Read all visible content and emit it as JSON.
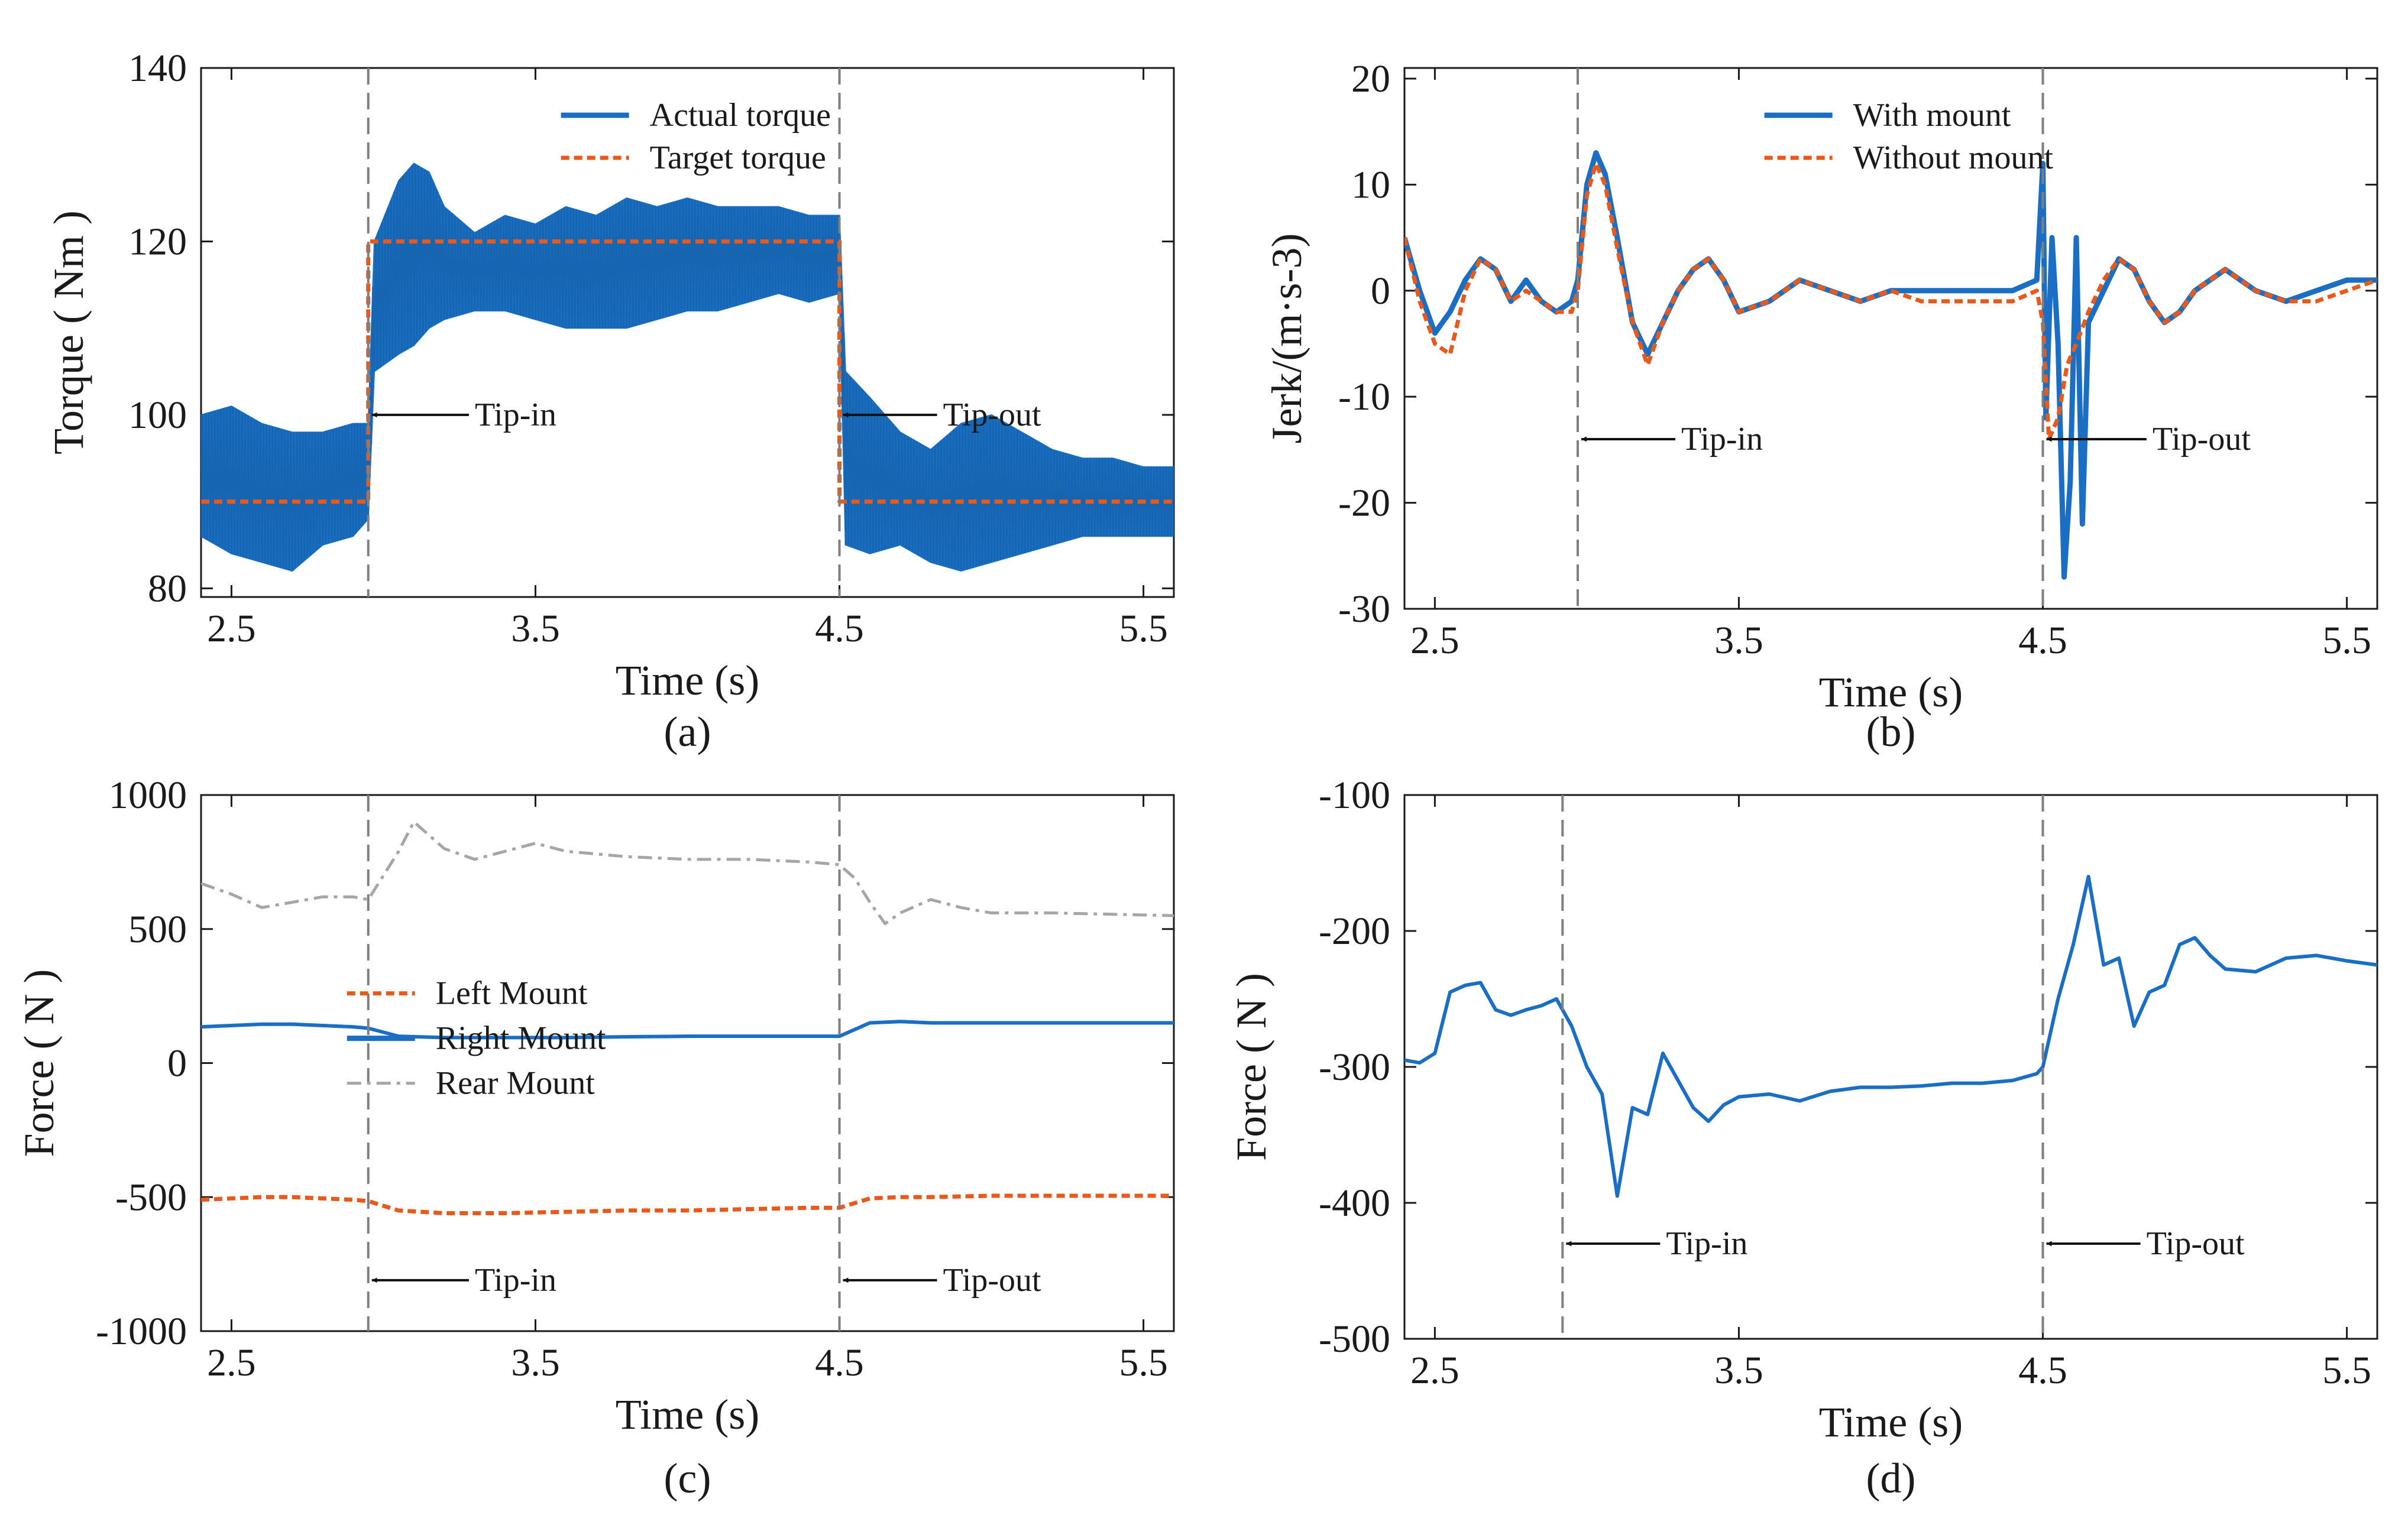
{
  "colors": {
    "blue": "#1a6fc4",
    "orange": "#e8591c",
    "gray": "#a6a6a6",
    "axis": "#1a1a1a",
    "marker": "#7f7f7f"
  },
  "chart_data": [
    {
      "id": "a",
      "type": "line",
      "caption": "(a)",
      "xlabel": "Time (s)",
      "ylabel": "Torque ( Nm )",
      "xlim": [
        2.4,
        5.6
      ],
      "ylim": [
        79,
        140
      ],
      "xticks": [
        2.5,
        3.5,
        4.5,
        5.5
      ],
      "xtick_labels": [
        "2.5",
        "3.5",
        "4.5",
        "5.5"
      ],
      "yticks": [
        80,
        100,
        120,
        140
      ],
      "ytick_labels": [
        "80",
        "100",
        "120",
        "140"
      ],
      "vlines": [
        2.95,
        4.5
      ],
      "annotations": [
        {
          "text": "Tip-in",
          "x_tip": 2.95,
          "x_text": 3.32,
          "y": 100
        },
        {
          "text": "Tip-out",
          "x_tip": 4.5,
          "x_text": 4.86,
          "y": 100
        }
      ],
      "legend": {
        "position": "top-center",
        "entries": [
          "Actual torque",
          "Target torque"
        ]
      },
      "series": [
        {
          "name": "Actual torque",
          "style": "band",
          "x": [
            2.4,
            2.5,
            2.6,
            2.7,
            2.8,
            2.9,
            2.95,
            2.97,
            3.05,
            3.1,
            3.15,
            3.2,
            3.3,
            3.4,
            3.5,
            3.6,
            3.7,
            3.8,
            3.9,
            4.0,
            4.1,
            4.2,
            4.3,
            4.4,
            4.5,
            4.52,
            4.6,
            4.7,
            4.8,
            4.9,
            5.0,
            5.1,
            5.2,
            5.3,
            5.4,
            5.5,
            5.6
          ],
          "upper": [
            100,
            101,
            99,
            98,
            98,
            99,
            99,
            120,
            127,
            129,
            128,
            124,
            121,
            123,
            122,
            124,
            123,
            125,
            124,
            125,
            124,
            124,
            124,
            123,
            123,
            105,
            102,
            98,
            96,
            99,
            100,
            98,
            96,
            95,
            95,
            94,
            94
          ],
          "lower": [
            86,
            84,
            83,
            82,
            85,
            86,
            88,
            105,
            107,
            108,
            110,
            111,
            112,
            112,
            111,
            110,
            110,
            110,
            111,
            112,
            112,
            113,
            114,
            113,
            114,
            85,
            84,
            85,
            83,
            82,
            83,
            84,
            85,
            86,
            86,
            86,
            86
          ]
        },
        {
          "name": "Target torque",
          "style": "dotted",
          "x": [
            2.4,
            2.95,
            2.95,
            4.5,
            4.5,
            5.6
          ],
          "y": [
            90,
            90,
            120,
            120,
            90,
            90
          ]
        }
      ]
    },
    {
      "id": "b",
      "type": "line",
      "caption": "(b)",
      "xlabel": "Time (s)",
      "ylabel": "Jerk/(m·s-3)",
      "xlim": [
        2.4,
        5.6
      ],
      "ylim": [
        -30,
        21
      ],
      "xticks": [
        2.5,
        3.5,
        4.5,
        5.5
      ],
      "xtick_labels": [
        "2.5",
        "3.5",
        "4.5",
        "5.5"
      ],
      "yticks": [
        -30,
        -20,
        -10,
        0,
        10,
        20
      ],
      "ytick_labels": [
        "-30",
        "-20",
        "-10",
        "0",
        "10",
        "20"
      ],
      "vlines": [
        2.97,
        4.5
      ],
      "annotations": [
        {
          "text": "Tip-in",
          "x_tip": 2.97,
          "x_text": 3.33,
          "y": -14
        },
        {
          "text": "Tip-out",
          "x_tip": 4.5,
          "x_text": 4.88,
          "y": -14
        }
      ],
      "legend": {
        "position": "top-center",
        "entries": [
          "With mount",
          "Without mount"
        ]
      },
      "series": [
        {
          "name": "With mount",
          "style": "solid",
          "x": [
            2.4,
            2.45,
            2.5,
            2.55,
            2.6,
            2.65,
            2.7,
            2.75,
            2.8,
            2.85,
            2.9,
            2.95,
            2.97,
            3.0,
            3.03,
            3.06,
            3.1,
            3.15,
            3.2,
            3.25,
            3.3,
            3.35,
            3.4,
            3.45,
            3.5,
            3.6,
            3.7,
            3.8,
            3.9,
            4.0,
            4.1,
            4.2,
            4.3,
            4.4,
            4.48,
            4.5,
            4.51,
            4.53,
            4.55,
            4.57,
            4.59,
            4.61,
            4.63,
            4.65,
            4.7,
            4.75,
            4.8,
            4.85,
            4.9,
            4.95,
            5.0,
            5.05,
            5.1,
            5.15,
            5.2,
            5.3,
            5.4,
            5.5,
            5.6
          ],
          "y": [
            5,
            0,
            -4,
            -2,
            1,
            3,
            2,
            -1,
            1,
            -1,
            -2,
            -1,
            1,
            10,
            13,
            11,
            5,
            -3,
            -6,
            -3,
            0,
            2,
            3,
            1,
            -2,
            -1,
            1,
            0,
            -1,
            0,
            0,
            0,
            0,
            0,
            1,
            12,
            -12,
            5,
            -5,
            -27,
            -18,
            5,
            -22,
            -3,
            0,
            3,
            2,
            -1,
            -3,
            -2,
            0,
            1,
            2,
            1,
            0,
            -1,
            0,
            1,
            1
          ]
        },
        {
          "name": "Without mount",
          "style": "dotted",
          "x": [
            2.4,
            2.45,
            2.5,
            2.55,
            2.6,
            2.65,
            2.7,
            2.75,
            2.8,
            2.85,
            2.9,
            2.95,
            2.97,
            3.0,
            3.03,
            3.06,
            3.1,
            3.15,
            3.2,
            3.25,
            3.3,
            3.35,
            3.4,
            3.45,
            3.5,
            3.6,
            3.7,
            3.8,
            3.9,
            4.0,
            4.1,
            4.2,
            4.3,
            4.4,
            4.48,
            4.5,
            4.52,
            4.55,
            4.58,
            4.61,
            4.65,
            4.7,
            4.75,
            4.8,
            4.85,
            4.9,
            4.95,
            5.0,
            5.05,
            5.1,
            5.2,
            5.3,
            5.4,
            5.5,
            5.6
          ],
          "y": [
            5,
            -1,
            -5,
            -6,
            0,
            3,
            2,
            -1,
            0,
            -1,
            -2,
            -2,
            0,
            9,
            12,
            10,
            4,
            -3,
            -7,
            -3,
            0,
            2,
            3,
            1,
            -2,
            -1,
            1,
            0,
            -1,
            0,
            -1,
            -1,
            -1,
            -1,
            0,
            -3,
            -14,
            -12,
            -7,
            -5,
            -2,
            1,
            3,
            2,
            -1,
            -3,
            -2,
            0,
            1,
            2,
            0,
            -1,
            -1,
            0,
            1
          ]
        }
      ]
    },
    {
      "id": "c",
      "type": "line",
      "caption": "(c)",
      "xlabel": "Time (s)",
      "ylabel": "Force ( N )",
      "xlim": [
        2.4,
        5.6
      ],
      "ylim": [
        -1000,
        1000
      ],
      "xticks": [
        2.5,
        3.5,
        4.5,
        5.5
      ],
      "xtick_labels": [
        "2.5",
        "3.5",
        "4.5",
        "5.5"
      ],
      "yticks": [
        -1000,
        -500,
        0,
        500,
        1000
      ],
      "ytick_labels": [
        "-1000",
        "-500",
        "0",
        "500",
        "1000"
      ],
      "vlines": [
        2.95,
        4.5
      ],
      "annotations": [
        {
          "text": "Tip-in",
          "x_tip": 2.95,
          "x_text": 3.32,
          "y": -810
        },
        {
          "text": "Tip-out",
          "x_tip": 4.5,
          "x_text": 4.86,
          "y": -810
        }
      ],
      "legend": {
        "position": "center-left",
        "entries": [
          "Left Mount",
          "Right Mount",
          "Rear Mount"
        ]
      },
      "series": [
        {
          "name": "Left Mount",
          "style": "dotted",
          "x": [
            2.4,
            2.5,
            2.6,
            2.7,
            2.8,
            2.9,
            2.95,
            3.05,
            3.2,
            3.4,
            3.6,
            3.8,
            4.0,
            4.2,
            4.4,
            4.5,
            4.6,
            4.7,
            4.8,
            5.0,
            5.2,
            5.4,
            5.6
          ],
          "y": [
            -510,
            -505,
            -500,
            -500,
            -505,
            -510,
            -515,
            -550,
            -560,
            -560,
            -555,
            -550,
            -550,
            -545,
            -540,
            -540,
            -505,
            -500,
            -500,
            -495,
            -495,
            -495,
            -495
          ]
        },
        {
          "name": "Right Mount",
          "style": "solid",
          "x": [
            2.4,
            2.5,
            2.6,
            2.7,
            2.8,
            2.9,
            2.95,
            3.05,
            3.2,
            3.4,
            3.6,
            3.8,
            4.0,
            4.2,
            4.4,
            4.5,
            4.6,
            4.7,
            4.8,
            5.0,
            5.2,
            5.4,
            5.6
          ],
          "y": [
            135,
            140,
            145,
            145,
            140,
            135,
            130,
            100,
            95,
            95,
            95,
            98,
            100,
            100,
            100,
            100,
            150,
            155,
            150,
            150,
            150,
            150,
            150
          ]
        },
        {
          "name": "Rear Mount",
          "style": "dashdot",
          "x": [
            2.4,
            2.5,
            2.6,
            2.7,
            2.8,
            2.9,
            2.95,
            3.05,
            3.1,
            3.2,
            3.3,
            3.4,
            3.5,
            3.6,
            3.8,
            4.0,
            4.2,
            4.4,
            4.5,
            4.55,
            4.6,
            4.65,
            4.7,
            4.8,
            4.9,
            5.0,
            5.2,
            5.4,
            5.6
          ],
          "y": [
            670,
            630,
            580,
            600,
            620,
            620,
            610,
            790,
            900,
            800,
            760,
            790,
            820,
            790,
            770,
            760,
            760,
            750,
            740,
            690,
            600,
            520,
            560,
            610,
            580,
            560,
            560,
            555,
            550
          ]
        }
      ]
    },
    {
      "id": "d",
      "type": "line",
      "caption": "(d)",
      "xlabel": "Time (s)",
      "ylabel": "Force ( N )",
      "xlim": [
        2.4,
        5.6
      ],
      "ylim": [
        -500,
        -100
      ],
      "xticks": [
        2.5,
        3.5,
        4.5,
        5.5
      ],
      "xtick_labels": [
        "2.5",
        "3.5",
        "4.5",
        "5.5"
      ],
      "yticks": [
        -500,
        -400,
        -300,
        -200,
        -100
      ],
      "ytick_labels": [
        "-500",
        "-400",
        "-300",
        "-200",
        "-100"
      ],
      "vlines": [
        2.92,
        4.5
      ],
      "annotations": [
        {
          "text": "Tip-in",
          "x_tip": 2.92,
          "x_text": 3.28,
          "y": -430
        },
        {
          "text": "Tip-out",
          "x_tip": 4.5,
          "x_text": 4.86,
          "y": -430
        }
      ],
      "legend": null,
      "series": [
        {
          "name": "Force",
          "style": "solid",
          "x": [
            2.4,
            2.45,
            2.5,
            2.55,
            2.6,
            2.65,
            2.7,
            2.75,
            2.8,
            2.85,
            2.9,
            2.95,
            3.0,
            3.05,
            3.1,
            3.15,
            3.2,
            3.25,
            3.3,
            3.35,
            3.4,
            3.45,
            3.5,
            3.6,
            3.7,
            3.8,
            3.9,
            4.0,
            4.1,
            4.2,
            4.3,
            4.4,
            4.48,
            4.5,
            4.55,
            4.6,
            4.65,
            4.7,
            4.75,
            4.8,
            4.85,
            4.9,
            4.95,
            5.0,
            5.05,
            5.1,
            5.2,
            5.3,
            5.4,
            5.5,
            5.6
          ],
          "y": [
            -295,
            -297,
            -290,
            -245,
            -240,
            -238,
            -258,
            -262,
            -258,
            -255,
            -250,
            -270,
            -300,
            -320,
            -395,
            -330,
            -335,
            -290,
            -310,
            -330,
            -340,
            -328,
            -322,
            -320,
            -325,
            -318,
            -315,
            -315,
            -314,
            -312,
            -312,
            -310,
            -305,
            -300,
            -250,
            -210,
            -160,
            -225,
            -220,
            -270,
            -245,
            -240,
            -210,
            -205,
            -218,
            -228,
            -230,
            -220,
            -218,
            -222,
            -225
          ]
        }
      ]
    }
  ]
}
